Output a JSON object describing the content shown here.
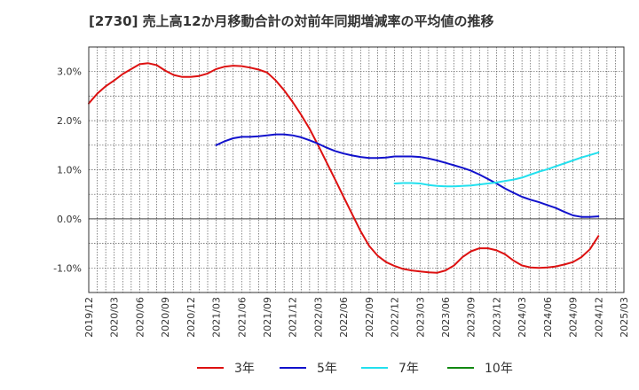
{
  "chart_data": {
    "type": "line",
    "title": "[2730]  売上高12か月移動合計の対前年同期増減率の平均値の推移",
    "xlabel": "",
    "ylabel": "",
    "x_ticks": [
      "2019/12",
      "2020/03",
      "2020/06",
      "2020/09",
      "2020/12",
      "2021/03",
      "2021/06",
      "2021/09",
      "2021/12",
      "2022/03",
      "2022/06",
      "2022/09",
      "2022/12",
      "2023/03",
      "2023/06",
      "2023/09",
      "2023/12",
      "2024/03",
      "2024/06",
      "2024/09",
      "2024/12",
      "2025/03"
    ],
    "y_ticks": [
      "-1.0%",
      "0.0%",
      "1.0%",
      "2.0%",
      "3.0%"
    ],
    "ylim": [
      -1.5,
      3.5
    ],
    "y_unit": "%",
    "grid": true,
    "legend_position": "bottom",
    "colors": {
      "3年": "#dd1111",
      "5年": "#1111cc",
      "7年": "#22e0ee",
      "10年": "#118811"
    },
    "series": [
      {
        "name": "3年",
        "color": "#dd1111",
        "points": [
          [
            "2019/12",
            2.35
          ],
          [
            "2020/01",
            2.55
          ],
          [
            "2020/02",
            2.7
          ],
          [
            "2020/03",
            2.82
          ],
          [
            "2020/04",
            2.95
          ],
          [
            "2020/05",
            3.05
          ],
          [
            "2020/06",
            3.15
          ],
          [
            "2020/07",
            3.17
          ],
          [
            "2020/08",
            3.13
          ],
          [
            "2020/09",
            3.02
          ],
          [
            "2020/10",
            2.93
          ],
          [
            "2020/11",
            2.89
          ],
          [
            "2020/12",
            2.89
          ],
          [
            "2021/01",
            2.91
          ],
          [
            "2021/02",
            2.96
          ],
          [
            "2021/03",
            3.05
          ],
          [
            "2021/04",
            3.1
          ],
          [
            "2021/05",
            3.12
          ],
          [
            "2021/06",
            3.11
          ],
          [
            "2021/07",
            3.08
          ],
          [
            "2021/08",
            3.04
          ],
          [
            "2021/09",
            2.98
          ],
          [
            "2021/10",
            2.82
          ],
          [
            "2021/11",
            2.62
          ],
          [
            "2021/12",
            2.38
          ],
          [
            "2022/01",
            2.12
          ],
          [
            "2022/02",
            1.83
          ],
          [
            "2022/03",
            1.5
          ],
          [
            "2022/04",
            1.15
          ],
          [
            "2022/05",
            0.8
          ],
          [
            "2022/06",
            0.45
          ],
          [
            "2022/07",
            0.1
          ],
          [
            "2022/08",
            -0.25
          ],
          [
            "2022/09",
            -0.55
          ],
          [
            "2022/10",
            -0.75
          ],
          [
            "2022/11",
            -0.88
          ],
          [
            "2022/12",
            -0.96
          ],
          [
            "2023/01",
            -1.02
          ],
          [
            "2023/02",
            -1.05
          ],
          [
            "2023/03",
            -1.07
          ],
          [
            "2023/04",
            -1.09
          ],
          [
            "2023/05",
            -1.1
          ],
          [
            "2023/06",
            -1.05
          ],
          [
            "2023/07",
            -0.95
          ],
          [
            "2023/08",
            -0.78
          ],
          [
            "2023/09",
            -0.66
          ],
          [
            "2023/10",
            -0.6
          ],
          [
            "2023/11",
            -0.6
          ],
          [
            "2023/12",
            -0.64
          ],
          [
            "2024/01",
            -0.72
          ],
          [
            "2024/02",
            -0.85
          ],
          [
            "2024/03",
            -0.95
          ],
          [
            "2024/04",
            -0.99
          ],
          [
            "2024/05",
            -1.0
          ],
          [
            "2024/06",
            -0.99
          ],
          [
            "2024/07",
            -0.97
          ],
          [
            "2024/08",
            -0.93
          ],
          [
            "2024/09",
            -0.88
          ],
          [
            "2024/10",
            -0.78
          ],
          [
            "2024/11",
            -0.62
          ],
          [
            "2024/12",
            -0.35
          ]
        ]
      },
      {
        "name": "5年",
        "color": "#1111cc",
        "points": [
          [
            "2021/03",
            1.5
          ],
          [
            "2021/04",
            1.58
          ],
          [
            "2021/05",
            1.64
          ],
          [
            "2021/06",
            1.67
          ],
          [
            "2021/07",
            1.67
          ],
          [
            "2021/08",
            1.68
          ],
          [
            "2021/09",
            1.7
          ],
          [
            "2021/10",
            1.72
          ],
          [
            "2021/11",
            1.72
          ],
          [
            "2021/12",
            1.7
          ],
          [
            "2022/01",
            1.66
          ],
          [
            "2022/02",
            1.6
          ],
          [
            "2022/03",
            1.53
          ],
          [
            "2022/04",
            1.45
          ],
          [
            "2022/05",
            1.38
          ],
          [
            "2022/06",
            1.33
          ],
          [
            "2022/07",
            1.29
          ],
          [
            "2022/08",
            1.26
          ],
          [
            "2022/09",
            1.24
          ],
          [
            "2022/10",
            1.24
          ],
          [
            "2022/11",
            1.25
          ],
          [
            "2022/12",
            1.27
          ],
          [
            "2023/01",
            1.27
          ],
          [
            "2023/02",
            1.27
          ],
          [
            "2023/03",
            1.26
          ],
          [
            "2023/04",
            1.23
          ],
          [
            "2023/05",
            1.19
          ],
          [
            "2023/06",
            1.14
          ],
          [
            "2023/07",
            1.09
          ],
          [
            "2023/08",
            1.04
          ],
          [
            "2023/09",
            0.98
          ],
          [
            "2023/10",
            0.9
          ],
          [
            "2023/11",
            0.81
          ],
          [
            "2023/12",
            0.72
          ],
          [
            "2024/01",
            0.62
          ],
          [
            "2024/02",
            0.53
          ],
          [
            "2024/03",
            0.45
          ],
          [
            "2024/04",
            0.39
          ],
          [
            "2024/05",
            0.34
          ],
          [
            "2024/06",
            0.28
          ],
          [
            "2024/07",
            0.22
          ],
          [
            "2024/08",
            0.14
          ],
          [
            "2024/09",
            0.07
          ],
          [
            "2024/10",
            0.04
          ],
          [
            "2024/11",
            0.04
          ],
          [
            "2024/12",
            0.05
          ]
        ]
      },
      {
        "name": "7年",
        "color": "#22e0ee",
        "points": [
          [
            "2022/12",
            0.72
          ],
          [
            "2023/01",
            0.73
          ],
          [
            "2023/02",
            0.73
          ],
          [
            "2023/03",
            0.72
          ],
          [
            "2023/04",
            0.69
          ],
          [
            "2023/05",
            0.67
          ],
          [
            "2023/06",
            0.66
          ],
          [
            "2023/07",
            0.66
          ],
          [
            "2023/08",
            0.67
          ],
          [
            "2023/09",
            0.68
          ],
          [
            "2023/10",
            0.7
          ],
          [
            "2023/11",
            0.72
          ],
          [
            "2023/12",
            0.74
          ],
          [
            "2024/01",
            0.77
          ],
          [
            "2024/02",
            0.8
          ],
          [
            "2024/03",
            0.84
          ],
          [
            "2024/04",
            0.9
          ],
          [
            "2024/05",
            0.96
          ],
          [
            "2024/06",
            1.01
          ],
          [
            "2024/07",
            1.07
          ],
          [
            "2024/08",
            1.13
          ],
          [
            "2024/09",
            1.19
          ],
          [
            "2024/10",
            1.25
          ],
          [
            "2024/11",
            1.3
          ],
          [
            "2024/12",
            1.35
          ]
        ]
      },
      {
        "name": "10年",
        "color": "#118811",
        "points": []
      }
    ]
  }
}
